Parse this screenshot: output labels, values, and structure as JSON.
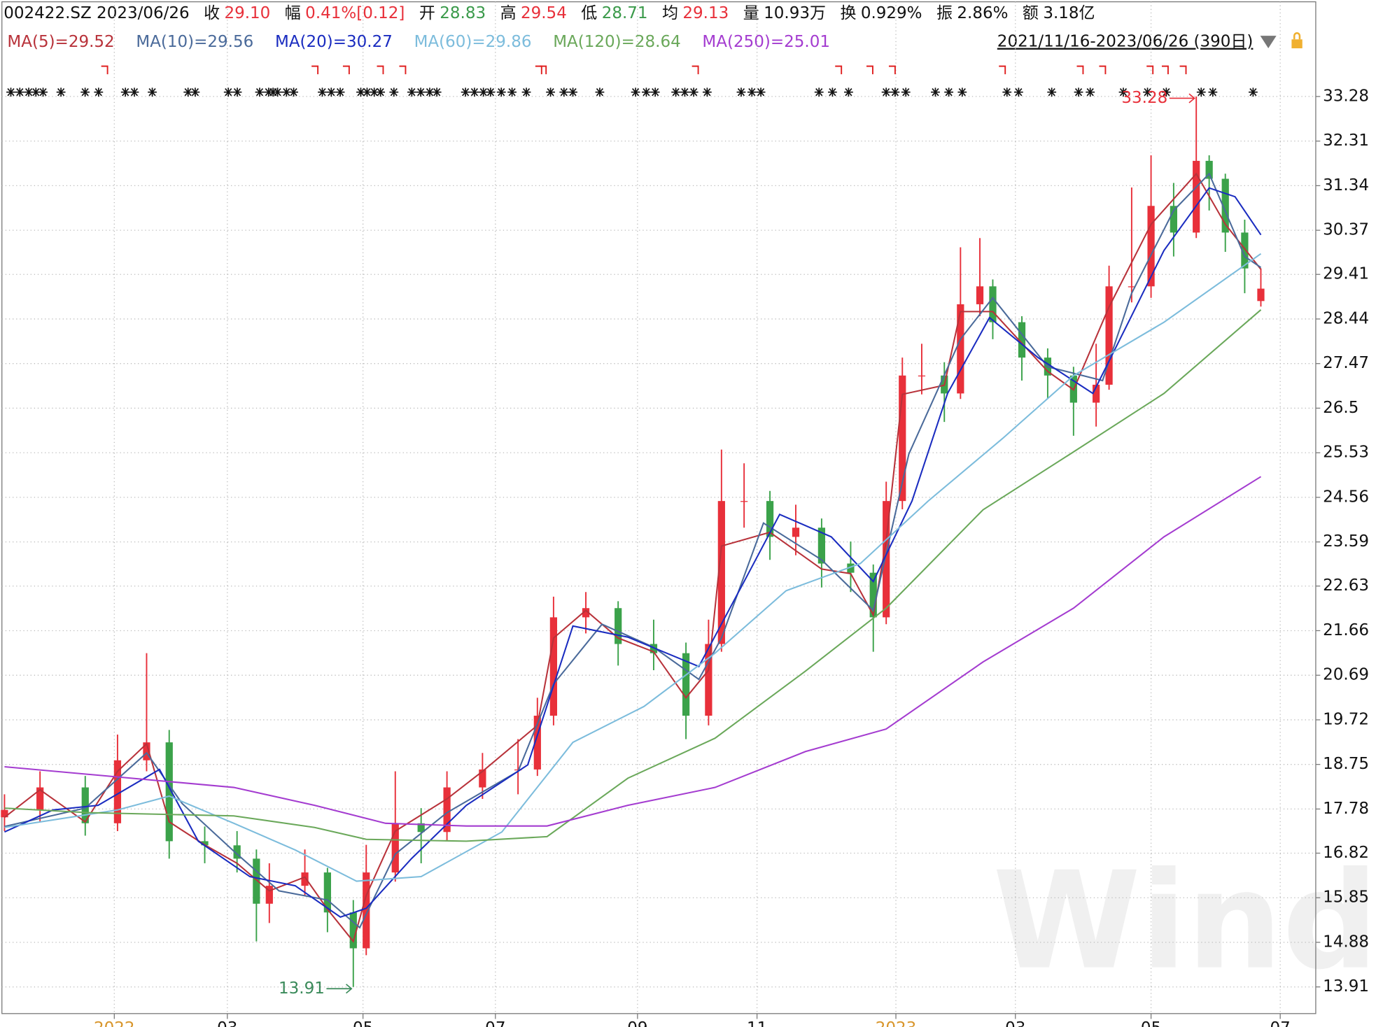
{
  "chart_data": {
    "type": "candlestick",
    "header": {
      "code_date": "002422.SZ 2023/06/26",
      "items": [
        {
          "label": "收",
          "value": "29.10",
          "color": "#e8303a"
        },
        {
          "label": "幅",
          "value": "0.41%[0.12]",
          "color": "#e8303a"
        },
        {
          "label": "开",
          "value": "28.83",
          "color": "#3a9a4a"
        },
        {
          "label": "高",
          "value": "29.54",
          "color": "#e8303a"
        },
        {
          "label": "低",
          "value": "28.71",
          "color": "#3a9a4a"
        },
        {
          "label": "均",
          "value": "29.13",
          "color": "#e8303a"
        },
        {
          "label": "量",
          "value": "10.93万",
          "color": "#111111"
        },
        {
          "label": "换",
          "value": "0.929%",
          "color": "#111111"
        },
        {
          "label": "振",
          "value": "2.86%",
          "color": "#111111"
        },
        {
          "label": "额",
          "value": "3.18亿",
          "color": "#111111"
        }
      ]
    },
    "range_label": "2021/11/16-2023/06/26 (390日)",
    "watermark": "Wind",
    "up_color": "#e8303a",
    "down_color": "#3ba24a",
    "grid": true,
    "x": [
      0,
      11,
      25,
      35,
      44,
      51,
      62,
      72,
      78,
      82,
      93,
      100,
      108,
      112,
      121,
      129,
      137,
      148,
      159,
      165,
      170,
      180,
      190,
      201,
      211,
      218,
      222,
      229,
      237,
      245,
      253,
      262,
      269,
      273,
      278,
      284,
      291,
      296,
      302,
      306,
      315,
      323,
      331,
      338,
      342,
      349,
      355,
      362,
      369,
      373,
      378,
      384,
      389
    ],
    "open": [
      17.6,
      17.76,
      18.25,
      17.47,
      18.84,
      19.23,
      17.08,
      16.99,
      16.7,
      15.72,
      16.11,
      16.4,
      15.53,
      14.75,
      16.4,
      17.47,
      17.28,
      18.25,
      18.64,
      18.64,
      19.81,
      21.95,
      22.15,
      21.37,
      21.17,
      19.81,
      21.37,
      24.48,
      24.48,
      23.7,
      23.9,
      23.12,
      22.92,
      21.95,
      24.48,
      27.21,
      27.21,
      26.82,
      28.76,
      29.15,
      28.37,
      27.6,
      27.21,
      26.62,
      27.01,
      29.15,
      29.15,
      30.9,
      30.32,
      31.88,
      31.49,
      30.32,
      28.83
    ],
    "high": [
      18.1,
      18.6,
      18.5,
      19.4,
      21.17,
      19.5,
      17.4,
      17.3,
      16.9,
      16.6,
      16.9,
      16.5,
      15.8,
      17.0,
      18.6,
      17.8,
      18.6,
      19.0,
      19.3,
      20.2,
      22.4,
      22.5,
      22.3,
      21.9,
      21.4,
      21.9,
      25.6,
      25.3,
      24.7,
      24.4,
      24.1,
      23.6,
      23.1,
      24.9,
      27.6,
      27.9,
      27.5,
      30.0,
      30.2,
      29.3,
      28.5,
      27.8,
      27.4,
      27.9,
      29.6,
      31.3,
      32.0,
      31.4,
      33.28,
      32.0,
      31.6,
      30.6,
      29.54
    ],
    "low": [
      17.3,
      17.5,
      17.2,
      17.3,
      18.6,
      16.7,
      16.6,
      16.4,
      14.9,
      15.3,
      15.9,
      15.1,
      13.91,
      14.6,
      16.2,
      16.6,
      17.1,
      18.0,
      18.1,
      18.5,
      19.6,
      21.6,
      20.9,
      20.8,
      19.3,
      19.6,
      21.2,
      23.9,
      23.2,
      23.3,
      22.6,
      22.5,
      21.2,
      21.8,
      24.3,
      26.8,
      26.2,
      26.7,
      28.5,
      28.0,
      27.1,
      26.7,
      25.9,
      26.1,
      26.9,
      28.8,
      28.9,
      29.8,
      30.2,
      30.8,
      29.9,
      29.0,
      28.71
    ],
    "close": [
      17.76,
      18.25,
      17.47,
      18.84,
      19.23,
      17.08,
      16.99,
      16.7,
      15.72,
      16.11,
      16.4,
      15.53,
      14.75,
      16.4,
      17.47,
      17.28,
      18.25,
      18.64,
      18.64,
      19.81,
      21.95,
      22.15,
      21.37,
      21.17,
      19.81,
      21.37,
      24.48,
      24.48,
      23.7,
      23.9,
      23.12,
      22.92,
      21.95,
      24.48,
      27.21,
      27.21,
      26.82,
      28.76,
      29.15,
      28.37,
      27.6,
      27.21,
      26.62,
      27.01,
      29.15,
      29.15,
      30.9,
      30.32,
      31.88,
      31.49,
      30.32,
      29.54,
      29.1
    ],
    "series": [
      {
        "name": "MA(5)=29.52",
        "color": "#b8323a",
        "x": [
          0,
          11,
          25,
          35,
          44,
          51,
          62,
          72,
          82,
          93,
          100,
          108,
          112,
          121,
          137,
          148,
          165,
          170,
          180,
          190,
          201,
          211,
          218,
          222,
          237,
          253,
          262,
          269,
          273,
          278,
          291,
          296,
          306,
          323,
          331,
          342,
          355,
          369,
          378,
          389
        ],
        "values": [
          17.6,
          18.2,
          17.5,
          18.6,
          19.2,
          17.5,
          17.0,
          16.6,
          16.0,
          16.3,
          15.6,
          14.9,
          15.9,
          17.3,
          18.0,
          18.6,
          19.6,
          21.5,
          22.1,
          21.5,
          21.2,
          20.2,
          20.8,
          23.5,
          23.8,
          23.0,
          22.9,
          22.0,
          23.6,
          26.8,
          27.0,
          28.6,
          28.6,
          27.3,
          26.9,
          28.7,
          30.5,
          31.6,
          30.5,
          29.52
        ]
      },
      {
        "name": "MA(10)=29.56",
        "color": "#4a6a9a",
        "x": [
          0,
          25,
          44,
          55,
          72,
          85,
          100,
          110,
          121,
          137,
          159,
          170,
          185,
          201,
          215,
          222,
          235,
          253,
          269,
          280,
          296,
          306,
          323,
          340,
          349,
          362,
          373,
          384,
          389
        ],
        "values": [
          17.4,
          17.8,
          19.0,
          17.9,
          16.8,
          16.0,
          15.8,
          15.2,
          16.8,
          17.7,
          18.6,
          20.5,
          21.8,
          21.3,
          20.6,
          21.5,
          24.0,
          23.2,
          22.1,
          25.5,
          28.0,
          28.9,
          27.4,
          27.1,
          29.0,
          30.8,
          31.6,
          29.8,
          29.56
        ]
      },
      {
        "name": "MA(20)=30.27",
        "color": "#1a2cc0",
        "x": [
          0,
          15,
          29,
          48,
          60,
          76,
          90,
          104,
          112,
          126,
          143,
          162,
          176,
          193,
          215,
          229,
          240,
          256,
          269,
          281,
          292,
          305,
          320,
          337,
          348,
          359,
          373,
          381,
          389
        ],
        "values": [
          17.28,
          17.76,
          17.86,
          18.64,
          17.08,
          16.31,
          16.11,
          15.43,
          15.62,
          16.7,
          17.86,
          18.74,
          21.76,
          21.52,
          20.88,
          22.73,
          24.19,
          23.7,
          22.73,
          24.48,
          26.82,
          28.47,
          27.6,
          26.82,
          28.37,
          29.93,
          31.29,
          31.1,
          30.27
        ]
      },
      {
        "name": "MA(60)=29.86",
        "color": "#7cbcdc",
        "x": [
          0,
          35,
          51,
          71,
          90,
          109,
          129,
          154,
          176,
          198,
          220,
          242,
          265,
          286,
          309,
          331,
          359,
          389
        ],
        "values": [
          17.38,
          17.76,
          18.06,
          17.47,
          16.89,
          16.21,
          16.31,
          17.28,
          19.23,
          20.01,
          21.17,
          22.53,
          23.12,
          24.48,
          25.84,
          27.21,
          28.37,
          29.86
        ]
      },
      {
        "name": "MA(120)=28.64",
        "color": "#6aa85a",
        "x": [
          0,
          26,
          71,
          96,
          112,
          143,
          168,
          193,
          220,
          248,
          273,
          303,
          331,
          359,
          389
        ],
        "values": [
          17.8,
          17.7,
          17.63,
          17.38,
          17.12,
          17.08,
          17.18,
          18.45,
          19.32,
          20.78,
          22.15,
          24.29,
          25.55,
          26.82,
          28.64
        ]
      },
      {
        "name": "MA(250)=25.01",
        "color": "#a43cd0",
        "x": [
          0,
          71,
          96,
          118,
          143,
          168,
          193,
          220,
          248,
          273,
          303,
          331,
          359,
          389
        ],
        "values": [
          18.7,
          18.25,
          17.86,
          17.47,
          17.41,
          17.41,
          17.86,
          18.25,
          19.03,
          19.52,
          20.98,
          22.15,
          23.7,
          25.01
        ]
      }
    ],
    "annotations": [
      {
        "text": "33.28",
        "x": 369,
        "y": 33.28,
        "color": "#e8303a"
      },
      {
        "text": "13.91",
        "x": 108,
        "y": 13.91,
        "color": "#3a8a5a"
      }
    ],
    "xlim": [
      -0.8,
      406
    ],
    "xticks": [
      {
        "value": 34,
        "label": "2022"
      },
      {
        "value": 69,
        "label": "03"
      },
      {
        "value": 111,
        "label": "05"
      },
      {
        "value": 152,
        "label": "07"
      },
      {
        "value": 196,
        "label": "09"
      },
      {
        "value": 233,
        "label": "11"
      },
      {
        "value": 276,
        "label": "2023"
      },
      {
        "value": 313,
        "label": "03"
      },
      {
        "value": 355,
        "label": "05"
      },
      {
        "value": 395,
        "label": "07"
      }
    ],
    "ylim": [
      13.33,
      35.34
    ],
    "yticks": [
      13.91,
      14.88,
      15.85,
      16.82,
      17.78,
      18.75,
      19.72,
      20.69,
      21.66,
      22.63,
      23.59,
      24.56,
      25.53,
      26.5,
      27.47,
      28.44,
      29.41,
      30.37,
      31.34,
      32.31,
      33.28
    ]
  }
}
